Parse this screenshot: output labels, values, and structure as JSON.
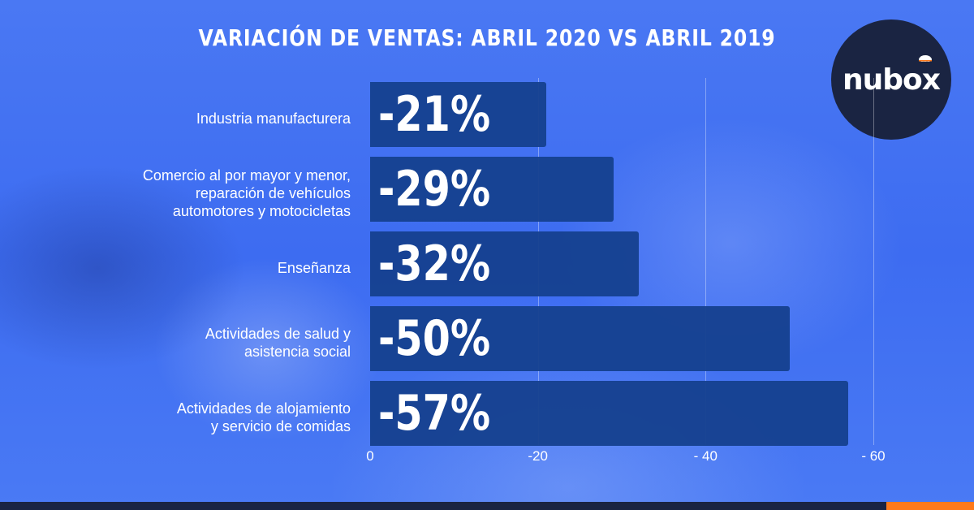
{
  "title": "VARIACIÓN DE VENTAS: ABRIL 2020 VS ABRIL 2019",
  "logo": {
    "text": "nubox"
  },
  "colors": {
    "background": "#3b6cf0",
    "bar": "#15408e",
    "logo_bg": "#1a2442",
    "accent": "#ff7a1a"
  },
  "chart_data": {
    "type": "bar",
    "orientation": "horizontal",
    "title": "VARIACIÓN DE VENTAS: ABRIL 2020 VS ABRIL 2019",
    "categories": [
      [
        "Industria manufacturera"
      ],
      [
        "Comercio al por mayor y menor,",
        "reparación de vehículos",
        "automotores y motocicletas"
      ],
      [
        "Enseñanza"
      ],
      [
        "Actividades de salud y",
        "asistencia social"
      ],
      [
        "Actividades de alojamiento",
        "y servicio de comidas"
      ]
    ],
    "values": [
      -21,
      -29,
      -32,
      -50,
      -57
    ],
    "data_labels": [
      "-21%",
      "-29%",
      "-32%",
      "-50%",
      "-57%"
    ],
    "xlim": [
      0,
      -60
    ],
    "x_ticks": [
      0,
      -20,
      -40,
      -60
    ],
    "x_tick_labels": [
      "0",
      "-20",
      "- 40",
      "- 60"
    ],
    "grid": true
  }
}
